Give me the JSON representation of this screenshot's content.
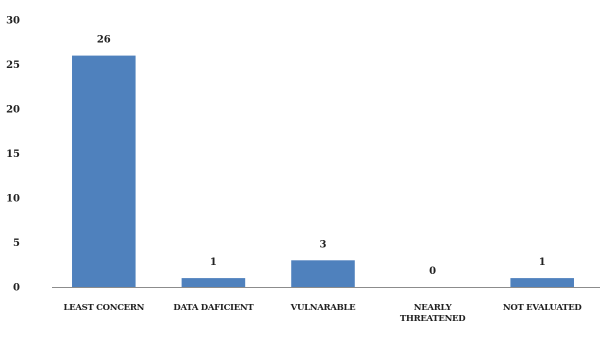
{
  "chart_data": {
    "type": "bar",
    "title": "",
    "xlabel": "",
    "ylabel": "",
    "categories": [
      [
        "LEAST CONCERN"
      ],
      [
        "DATA DAFICIENT"
      ],
      [
        "VULNARABLE"
      ],
      [
        "NEARLY",
        "THREATENED"
      ],
      [
        "NOT EVALUATED"
      ]
    ],
    "values": [
      26,
      1,
      3,
      0,
      1
    ],
    "data_labels": [
      "26",
      "1",
      "3",
      "0",
      "1"
    ],
    "ylim": [
      0,
      30
    ],
    "yticks": [
      "0",
      "5",
      "10",
      "15",
      "20",
      "25",
      "30"
    ],
    "grid": false,
    "legend": "none",
    "bar_color": "#4f81bd"
  }
}
